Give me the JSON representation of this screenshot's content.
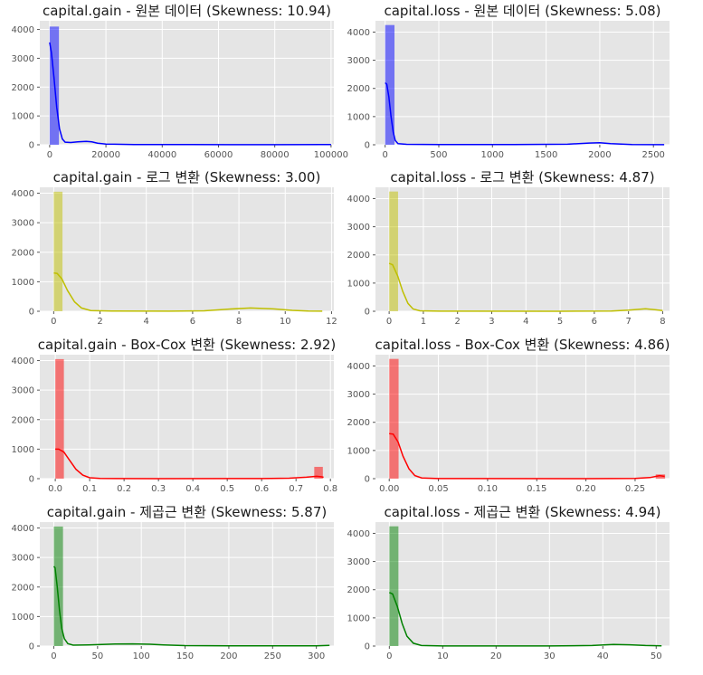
{
  "chart_data": [
    {
      "type": "histogram",
      "title": "capital.gain - 원본 데이터 (Skewness: 10.94)",
      "color": "#0000ff",
      "xlim": [
        -3500,
        101000
      ],
      "ylim": [
        0,
        4300
      ],
      "xticks": [
        0,
        20000,
        40000,
        60000,
        80000,
        100000
      ],
      "xtick_labels": [
        "0",
        "20000",
        "40000",
        "60000",
        "80000",
        "100000"
      ],
      "yticks": [
        0,
        1000,
        2000,
        3000,
        4000
      ],
      "bars": [
        {
          "x0": 0,
          "x1": 3300,
          "h": 4100
        }
      ],
      "kde": [
        [
          0,
          3550
        ],
        [
          600,
          3200
        ],
        [
          1500,
          2350
        ],
        [
          2500,
          1300
        ],
        [
          3500,
          550
        ],
        [
          4500,
          200
        ],
        [
          5500,
          90
        ],
        [
          7500,
          80
        ],
        [
          10000,
          100
        ],
        [
          13000,
          120
        ],
        [
          15000,
          100
        ],
        [
          17000,
          55
        ],
        [
          20000,
          25
        ],
        [
          30000,
          10
        ],
        [
          50000,
          5
        ],
        [
          80000,
          4
        ],
        [
          97000,
          8
        ],
        [
          100000,
          10
        ]
      ]
    },
    {
      "type": "histogram",
      "title": "capital.loss - 원본 데이터 (Skewness: 5.08)",
      "color": "#0000ff",
      "xlim": [
        -90,
        2650
      ],
      "ylim": [
        0,
        4400
      ],
      "xticks": [
        0,
        500,
        1000,
        1500,
        2000,
        2500
      ],
      "xtick_labels": [
        "0",
        "500",
        "1000",
        "1500",
        "2000",
        "2500"
      ],
      "yticks": [
        0,
        1000,
        2000,
        3000,
        4000
      ],
      "bars": [
        {
          "x0": 0,
          "x1": 87,
          "h": 4250
        }
      ],
      "kde": [
        [
          0,
          2200
        ],
        [
          15,
          2150
        ],
        [
          35,
          1700
        ],
        [
          55,
          1000
        ],
        [
          75,
          450
        ],
        [
          95,
          150
        ],
        [
          120,
          40
        ],
        [
          200,
          15
        ],
        [
          500,
          5
        ],
        [
          1200,
          5
        ],
        [
          1700,
          20
        ],
        [
          1900,
          60
        ],
        [
          2000,
          70
        ],
        [
          2100,
          40
        ],
        [
          2300,
          10
        ],
        [
          2600,
          3
        ]
      ]
    },
    {
      "type": "histogram",
      "title": "capital.gain - 로그 변환 (Skewness: 3.00)",
      "color": "#bfbf00",
      "xlim": [
        -0.6,
        12.1
      ],
      "ylim": [
        0,
        4200
      ],
      "xticks": [
        0,
        2,
        4,
        6,
        8,
        10,
        12
      ],
      "xtick_labels": [
        "0",
        "2",
        "4",
        "6",
        "8",
        "10",
        "12"
      ],
      "yticks": [
        0,
        1000,
        2000,
        3000,
        4000
      ],
      "bars": [
        {
          "x0": 0,
          "x1": 0.38,
          "h": 4050
        }
      ],
      "kde": [
        [
          0,
          1300
        ],
        [
          0.15,
          1280
        ],
        [
          0.35,
          1100
        ],
        [
          0.6,
          700
        ],
        [
          0.9,
          320
        ],
        [
          1.2,
          110
        ],
        [
          1.6,
          25
        ],
        [
          2.5,
          5
        ],
        [
          5,
          2
        ],
        [
          6.5,
          15
        ],
        [
          7.5,
          70
        ],
        [
          8.5,
          110
        ],
        [
          9.5,
          80
        ],
        [
          10.3,
          30
        ],
        [
          11,
          5
        ],
        [
          11.6,
          2
        ]
      ]
    },
    {
      "type": "histogram",
      "title": "capital.loss - 로그 변환 (Skewness: 4.87)",
      "color": "#bfbf00",
      "xlim": [
        -0.4,
        8.2
      ],
      "ylim": [
        0,
        4400
      ],
      "xticks": [
        0,
        1,
        2,
        3,
        4,
        5,
        6,
        7,
        8
      ],
      "xtick_labels": [
        "0",
        "1",
        "2",
        "3",
        "4",
        "5",
        "6",
        "7",
        "8"
      ],
      "yticks": [
        0,
        1000,
        2000,
        3000,
        4000
      ],
      "bars": [
        {
          "x0": 0,
          "x1": 0.26,
          "h": 4250
        }
      ],
      "kde": [
        [
          0,
          1700
        ],
        [
          0.1,
          1650
        ],
        [
          0.25,
          1250
        ],
        [
          0.4,
          700
        ],
        [
          0.55,
          280
        ],
        [
          0.7,
          80
        ],
        [
          0.9,
          15
        ],
        [
          1.5,
          3
        ],
        [
          5,
          1
        ],
        [
          6.5,
          10
        ],
        [
          7,
          40
        ],
        [
          7.5,
          90
        ],
        [
          7.8,
          50
        ],
        [
          8,
          25
        ]
      ]
    },
    {
      "type": "histogram",
      "title": "capital.gain - Box-Cox 변환 (Skewness: 2.92)",
      "color": "#ff0000",
      "xlim": [
        -0.045,
        0.81
      ],
      "ylim": [
        0,
        4200
      ],
      "xticks": [
        0.0,
        0.1,
        0.2,
        0.3,
        0.4,
        0.5,
        0.6,
        0.7,
        0.8
      ],
      "xtick_labels": [
        "0.0",
        "0.1",
        "0.2",
        "0.3",
        "0.4",
        "0.5",
        "0.6",
        "0.7",
        "0.8"
      ],
      "yticks": [
        0,
        1000,
        2000,
        3000,
        4000
      ],
      "bars": [
        {
          "x0": 0,
          "x1": 0.025,
          "h": 4050
        },
        {
          "x0": 0.753,
          "x1": 0.778,
          "h": 400
        }
      ],
      "kde": [
        [
          0,
          1000
        ],
        [
          0.01,
          1000
        ],
        [
          0.025,
          900
        ],
        [
          0.04,
          650
        ],
        [
          0.06,
          320
        ],
        [
          0.08,
          120
        ],
        [
          0.1,
          30
        ],
        [
          0.13,
          5
        ],
        [
          0.3,
          1
        ],
        [
          0.6,
          2
        ],
        [
          0.68,
          15
        ],
        [
          0.73,
          50
        ],
        [
          0.76,
          80
        ],
        [
          0.775,
          60
        ],
        [
          0.78,
          45
        ]
      ]
    },
    {
      "type": "histogram",
      "title": "capital.loss - Box-Cox 변환 (Skewness: 4.86)",
      "color": "#ff0000",
      "xlim": [
        -0.014,
        0.285
      ],
      "ylim": [
        0,
        4400
      ],
      "xticks": [
        0.0,
        0.05,
        0.1,
        0.15,
        0.2,
        0.25
      ],
      "xtick_labels": [
        "0.00",
        "0.05",
        "0.10",
        "0.15",
        "0.20",
        "0.25"
      ],
      "yticks": [
        0,
        1000,
        2000,
        3000,
        4000
      ],
      "bars": [
        {
          "x0": 0,
          "x1": 0.0095,
          "h": 4250
        },
        {
          "x0": 0.271,
          "x1": 0.2805,
          "h": 150
        }
      ],
      "kde": [
        [
          0,
          1600
        ],
        [
          0.004,
          1580
        ],
        [
          0.009,
          1300
        ],
        [
          0.014,
          800
        ],
        [
          0.02,
          350
        ],
        [
          0.026,
          110
        ],
        [
          0.033,
          25
        ],
        [
          0.05,
          3
        ],
        [
          0.2,
          1
        ],
        [
          0.25,
          5
        ],
        [
          0.265,
          40
        ],
        [
          0.275,
          110
        ],
        [
          0.28,
          80
        ]
      ]
    },
    {
      "type": "histogram",
      "title": "capital.gain - 제곱근 변환 (Skewness: 5.87)",
      "color": "#008000",
      "xlim": [
        -16,
        320
      ],
      "ylim": [
        0,
        4200
      ],
      "xticks": [
        0,
        50,
        100,
        150,
        200,
        250,
        300
      ],
      "xtick_labels": [
        "0",
        "50",
        "100",
        "150",
        "200",
        "250",
        "300"
      ],
      "yticks": [
        0,
        1000,
        2000,
        3000,
        4000
      ],
      "bars": [
        {
          "x0": 0,
          "x1": 10.5,
          "h": 4050
        }
      ],
      "kde": [
        [
          0,
          2700
        ],
        [
          1.5,
          2650
        ],
        [
          4,
          2000
        ],
        [
          6.5,
          1200
        ],
        [
          9,
          600
        ],
        [
          12,
          250
        ],
        [
          16,
          80
        ],
        [
          22,
          30
        ],
        [
          40,
          40
        ],
        [
          70,
          70
        ],
        [
          90,
          75
        ],
        [
          110,
          60
        ],
        [
          125,
          40
        ],
        [
          150,
          15
        ],
        [
          200,
          5
        ],
        [
          300,
          8
        ],
        [
          315,
          20
        ]
      ]
    },
    {
      "type": "histogram",
      "title": "capital.loss - 제곱근 변환 (Skewness: 4.94)",
      "color": "#008000",
      "xlim": [
        -2.6,
        52.5
      ],
      "ylim": [
        0,
        4400
      ],
      "xticks": [
        0,
        10,
        20,
        30,
        40,
        50
      ],
      "xtick_labels": [
        "0",
        "10",
        "20",
        "30",
        "40",
        "50"
      ],
      "yticks": [
        0,
        1000,
        2000,
        3000,
        4000
      ],
      "bars": [
        {
          "x0": 0,
          "x1": 1.7,
          "h": 4250
        }
      ],
      "kde": [
        [
          0,
          1900
        ],
        [
          0.6,
          1850
        ],
        [
          1.5,
          1400
        ],
        [
          2.4,
          800
        ],
        [
          3.3,
          350
        ],
        [
          4.5,
          100
        ],
        [
          6,
          20
        ],
        [
          10,
          3
        ],
        [
          30,
          2
        ],
        [
          38,
          20
        ],
        [
          42,
          55
        ],
        [
          45,
          45
        ],
        [
          48,
          20
        ],
        [
          51,
          5
        ]
      ]
    }
  ]
}
